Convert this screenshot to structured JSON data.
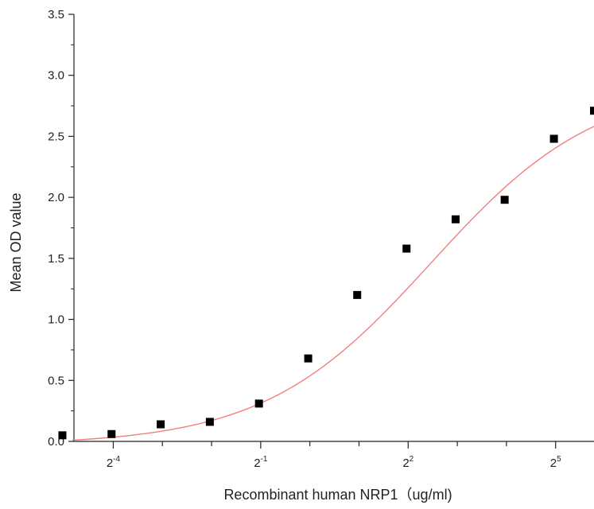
{
  "chart_data": {
    "type": "scatter",
    "title": "",
    "xlabel": "Recombinant human NRP1（ug/ml)",
    "ylabel": "Mean OD value",
    "x_scale": "log2",
    "xlim": [
      0.0359,
      55
    ],
    "ylim": [
      0,
      3.5
    ],
    "x_ticks": [
      {
        "base": "2",
        "exp": "-4",
        "value": 0.0625
      },
      {
        "base": "2",
        "exp": "-1",
        "value": 0.5
      },
      {
        "base": "2",
        "exp": "2",
        "value": 4
      },
      {
        "base": "2",
        "exp": "5",
        "value": 32
      }
    ],
    "y_ticks": [
      "0.0",
      "0.5",
      "1.0",
      "1.5",
      "2.0",
      "2.5",
      "3.0",
      "3.5"
    ],
    "y_tick_values": [
      0,
      0.5,
      1.0,
      1.5,
      2.0,
      2.5,
      3.0,
      3.5
    ],
    "series": [
      {
        "marker": "square",
        "color": "#000000",
        "points": [
          {
            "x": 0.0305,
            "y": 0.05
          },
          {
            "x": 0.061,
            "y": 0.06
          },
          {
            "x": 0.122,
            "y": 0.14
          },
          {
            "x": 0.244,
            "y": 0.16
          },
          {
            "x": 0.488,
            "y": 0.31
          },
          {
            "x": 0.977,
            "y": 0.68
          },
          {
            "x": 1.95,
            "y": 1.2
          },
          {
            "x": 3.91,
            "y": 1.58
          },
          {
            "x": 7.81,
            "y": 1.82
          },
          {
            "x": 15.6,
            "y": 1.98
          },
          {
            "x": 31.25,
            "y": 2.48
          },
          {
            "x": 62.5,
            "y": 2.71
          }
        ]
      }
    ],
    "fit_curve": {
      "color": "#f08080",
      "model": "sigmoid",
      "bottom": -0.03,
      "top": 2.95,
      "ec50": 5.5,
      "hill_slope": 0.85
    }
  }
}
